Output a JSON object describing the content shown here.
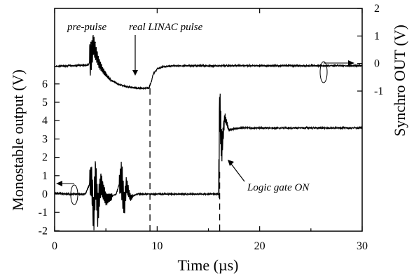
{
  "chart_data": {
    "type": "line",
    "title": "",
    "xlabel": "Time (µs)",
    "ylabel_left": "Monostable output (V)",
    "ylabel_right": "Synchro OUT (V)",
    "xlim": [
      0,
      30
    ],
    "ylim_left": [
      -2,
      6
    ],
    "ylim_right": [
      -1,
      2
    ],
    "x_ticks": [
      "0",
      "10",
      "20",
      "30"
    ],
    "y_ticks_left": [
      "-2",
      "-1",
      "0",
      "1",
      "2",
      "3",
      "4",
      "5",
      "6"
    ],
    "y_ticks_right": [
      "-1",
      "0",
      "1",
      "2"
    ],
    "grid": false,
    "series": [
      {
        "axis": "right",
        "x": [
          0,
          3.3,
          3.6,
          3.8,
          4.0,
          4.3,
          4.7,
          5.2,
          5.7,
          6.2,
          6.8,
          7.5,
          8.2,
          8.8,
          9.2,
          9.4,
          9.6,
          10.0,
          10.5,
          11.5,
          13,
          15,
          20,
          25,
          30
        ],
        "y": [
          -0.1,
          -0.05,
          0.3,
          0.7,
          0.4,
          0.05,
          -0.25,
          -0.5,
          -0.65,
          -0.75,
          -0.82,
          -0.87,
          -0.9,
          -0.9,
          -0.88,
          -0.7,
          -0.4,
          -0.2,
          -0.12,
          -0.08,
          -0.08,
          -0.08,
          -0.08,
          -0.08,
          -0.08
        ]
      },
      {
        "axis": "left",
        "x": [
          0,
          1,
          2,
          3,
          3.6,
          3.8,
          4.0,
          4.2,
          4.5,
          5,
          6,
          6.5,
          6.8,
          7.0,
          7.4,
          8,
          9,
          10,
          12,
          14,
          15.5,
          16.0,
          16.1,
          16.3,
          16.6,
          17,
          18,
          20,
          25,
          30
        ],
        "y": [
          0.05,
          0.0,
          0.0,
          0.0,
          0.8,
          -1.2,
          1.0,
          -0.9,
          0.6,
          -0.3,
          0.0,
          0.9,
          -0.6,
          0.5,
          -0.2,
          0.0,
          0.0,
          0.0,
          0.0,
          0.0,
          0.0,
          0.0,
          4.8,
          2.5,
          4.2,
          3.5,
          3.6,
          3.6,
          3.6,
          3.6
        ]
      }
    ],
    "vlines_x": [
      9.3,
      16.1
    ],
    "annotations": {
      "pre_pulse": "pre-pulse",
      "real_linac_pulse": "real LINAC pulse",
      "logic_gate_on": "Logic gate ON"
    }
  }
}
